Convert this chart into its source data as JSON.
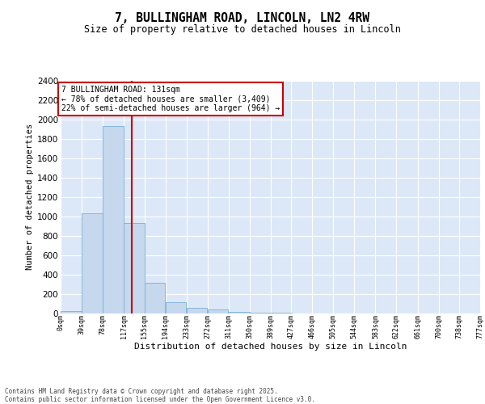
{
  "title": "7, BULLINGHAM ROAD, LINCOLN, LN2 4RW",
  "subtitle": "Size of property relative to detached houses in Lincoln",
  "xlabel": "Distribution of detached houses by size in Lincoln",
  "ylabel": "Number of detached properties",
  "bar_color": "#c5d8ee",
  "bar_edge_color": "#7bafd4",
  "background_color": "#dce8f7",
  "grid_color": "#ffffff",
  "vline_color": "#cc0000",
  "vline_x": 131,
  "annotation_text": "7 BULLINGHAM ROAD: 131sqm\n← 78% of detached houses are smaller (3,409)\n22% of semi-detached houses are larger (964) →",
  "annotation_box_edgecolor": "#cc0000",
  "footer_text": "Contains HM Land Registry data © Crown copyright and database right 2025.\nContains public sector information licensed under the Open Government Licence v3.0.",
  "bin_edges": [
    0,
    39,
    78,
    117,
    155,
    194,
    233,
    272,
    311,
    350,
    389,
    427,
    466,
    505,
    544,
    583,
    622,
    661,
    700,
    738,
    777
  ],
  "bar_heights": [
    20,
    1030,
    1930,
    930,
    310,
    110,
    55,
    35,
    10,
    2,
    1,
    0,
    0,
    0,
    0,
    0,
    0,
    0,
    0,
    0
  ],
  "ylim": [
    0,
    2400
  ],
  "yticks": [
    0,
    200,
    400,
    600,
    800,
    1000,
    1200,
    1400,
    1600,
    1800,
    2000,
    2200,
    2400
  ]
}
